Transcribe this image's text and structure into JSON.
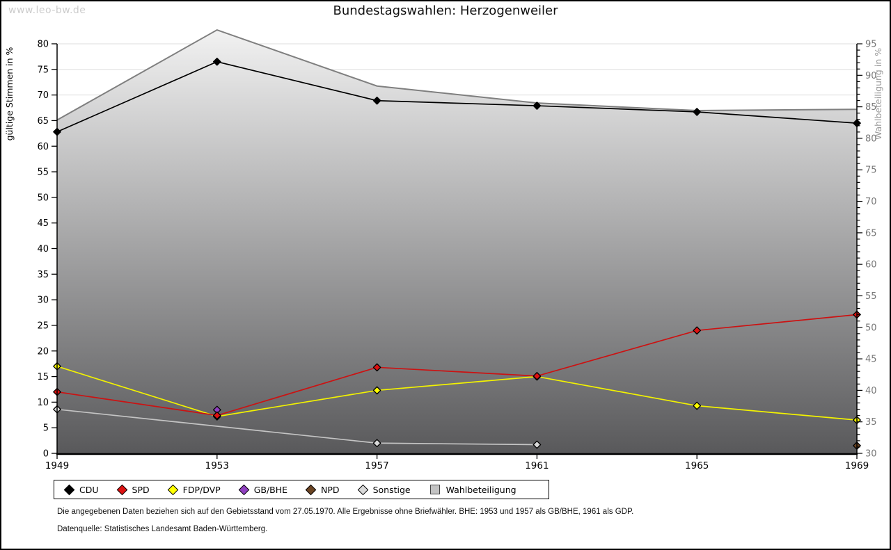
{
  "watermark": "www.leo-bw.de",
  "title": "Bundestagswahlen: Herzogenweiler",
  "footer": {
    "line1": "Die angegebenen Daten beziehen sich auf den Gebietsstand vom 27.05.1970. Alle Ergebnisse ohne Briefwähler. BHE: 1953 und 1957 als GB/BHE, 1961 als GDP.",
    "line2": "Datenquelle: Statistisches Landesamt Baden-Württemberg."
  },
  "chart_data": {
    "type": "line",
    "title": "Bundestagswahlen: Herzogenweiler",
    "x": [
      1949,
      1953,
      1957,
      1961,
      1965,
      1969
    ],
    "left_axis": {
      "label": "gültige Stimmen in %",
      "min": 0,
      "max": 80,
      "tick_step": 5
    },
    "right_axis": {
      "label": "Wahlbeteiligung in %",
      "min": 30,
      "max": 95,
      "tick_step": 5,
      "minor_step": 1
    },
    "grid": "horizontal",
    "legend_position": "bottom",
    "series": [
      {
        "name": "CDU",
        "axis": "left",
        "kind": "line",
        "color": "#000000",
        "marker_fill": "#000000",
        "values": [
          62.8,
          76.5,
          68.9,
          67.9,
          66.7,
          64.5
        ]
      },
      {
        "name": "SPD",
        "axis": "left",
        "kind": "line",
        "color": "#cc1212",
        "marker_fill": "#dd1111",
        "values": [
          12.0,
          7.4,
          16.8,
          15.1,
          24.0,
          27.1
        ]
      },
      {
        "name": "FDP/DVP",
        "axis": "left",
        "kind": "line",
        "color": "#f2f200",
        "marker_fill": "#ffff00",
        "values": [
          17.0,
          7.2,
          12.3,
          15.0,
          9.3,
          6.5
        ]
      },
      {
        "name": "GB/BHE",
        "axis": "left",
        "kind": "line",
        "color": "#9040c0",
        "marker_fill": "#9040c0",
        "values": [
          null,
          8.5,
          null,
          null,
          null,
          null
        ]
      },
      {
        "name": "NPD",
        "axis": "left",
        "kind": "line",
        "color": "#6b4423",
        "marker_fill": "#6b4423",
        "values": [
          null,
          null,
          null,
          null,
          null,
          1.5
        ]
      },
      {
        "name": "Sonstige",
        "axis": "left",
        "kind": "line",
        "color": "#c4c4c4",
        "marker_fill": "#d9d9d9",
        "values": [
          8.6,
          null,
          2.0,
          1.7,
          null,
          null
        ]
      },
      {
        "name": "Wahlbeteiligung",
        "axis": "right",
        "kind": "area",
        "color": "#7f7f7f",
        "marker_fill": "#c3c3c3",
        "values": [
          82.9,
          97.2,
          88.3,
          85.6,
          84.4,
          84.6
        ]
      }
    ],
    "area_gradient": {
      "top": "#f2f2f2",
      "bottom": "#59595b"
    },
    "grid_color": "#dcdcdc",
    "right_label_color": "#777777",
    "right_title_color": "#999999"
  }
}
